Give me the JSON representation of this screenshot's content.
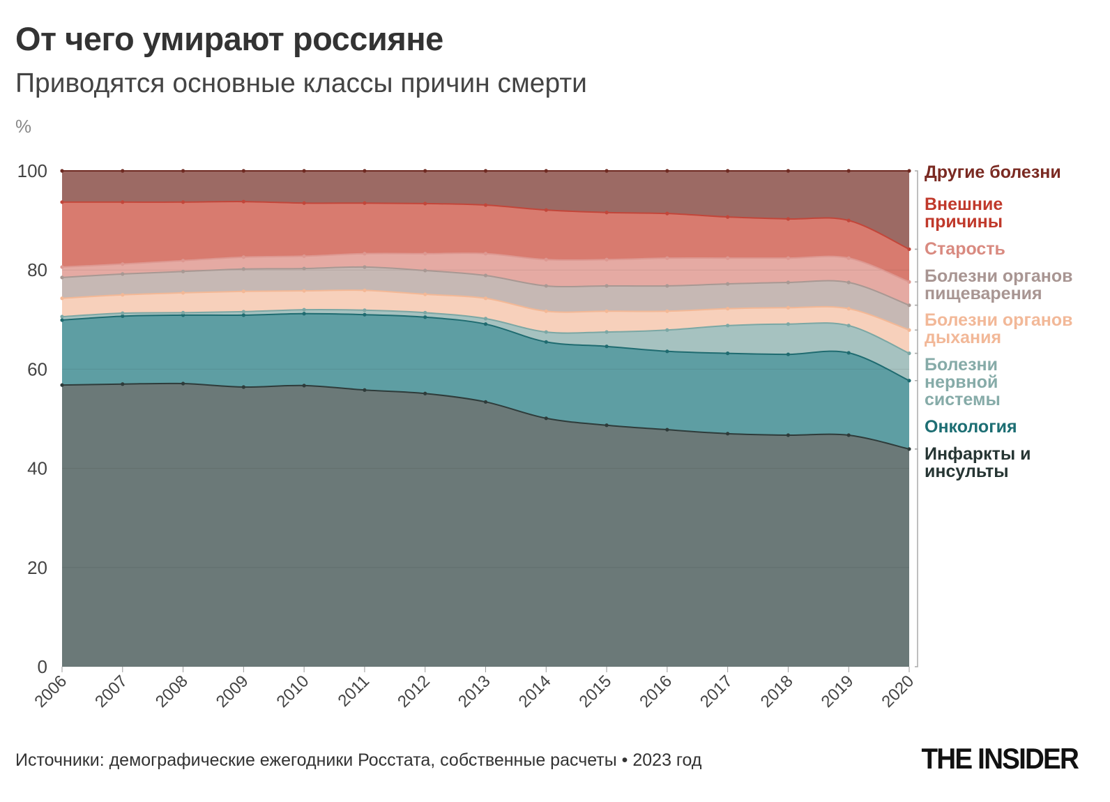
{
  "header": {
    "title": "От чего умирают россияне",
    "subtitle": "Приводятся основные классы причин смерти",
    "unit": "%"
  },
  "footer": {
    "source": "Источники: демографические ежегодники Росстата, собственные расчеты • 2023 год",
    "logo": "THE INSIDER"
  },
  "chart_data": {
    "type": "area",
    "stacked": true,
    "title": "От чего умирают россияне",
    "subtitle": "Приводятся основные классы причин смерти",
    "ylabel": "%",
    "ylim": [
      0,
      100
    ],
    "yticks": [
      0,
      20,
      40,
      60,
      80,
      100
    ],
    "grid": true,
    "legend": "right, inline labels",
    "x": [
      2006,
      2007,
      2008,
      2009,
      2010,
      2011,
      2012,
      2013,
      2014,
      2015,
      2016,
      2017,
      2018,
      2019,
      2020
    ],
    "series": [
      {
        "name": "Инфаркты и инсульты",
        "label_lines": [
          "Инфаркты и",
          "инсульты"
        ],
        "fill": "#6b7978",
        "line": "#2e3b3a",
        "label_color": "#263533",
        "values": [
          56.8,
          57.0,
          57.1,
          56.4,
          56.7,
          55.8,
          55.1,
          53.4,
          50.1,
          48.7,
          47.8,
          47.0,
          46.7,
          46.7,
          43.9
        ]
      },
      {
        "name": "Онкология",
        "label_lines": [
          "Онкология"
        ],
        "fill": "#5e9ea3",
        "line": "#1f6b70",
        "label_color": "#1d6e73",
        "values": [
          13.1,
          13.7,
          13.8,
          14.5,
          14.5,
          15.2,
          15.4,
          15.7,
          15.4,
          15.9,
          15.8,
          16.2,
          16.3,
          16.6,
          13.8
        ]
      },
      {
        "name": "Болезни нервной системы",
        "label_lines": [
          "Болезни",
          "нервной",
          "системы"
        ],
        "fill": "#a6c2c0",
        "line": "#7ba7a4",
        "label_color": "#86aba8",
        "values": [
          0.7,
          0.6,
          0.5,
          0.7,
          0.8,
          0.9,
          0.9,
          1.1,
          2.0,
          2.9,
          4.3,
          5.6,
          6.1,
          5.5,
          5.5
        ]
      },
      {
        "name": "Болезни органов дыхания",
        "label_lines": [
          "Болезни органов",
          "дыхания"
        ],
        "fill": "#f7d0bb",
        "line": "#f3b896",
        "label_color": "#f2b898",
        "values": [
          3.7,
          3.7,
          4.0,
          4.1,
          3.8,
          4.0,
          3.7,
          4.1,
          4.2,
          4.2,
          3.8,
          3.4,
          3.3,
          3.4,
          4.7
        ]
      },
      {
        "name": "Болезни органов пищеварения",
        "label_lines": [
          "Болезни органов",
          "пищеварения"
        ],
        "fill": "#c6b8b4",
        "line": "#a89893",
        "label_color": "#a89592",
        "values": [
          4.2,
          4.2,
          4.3,
          4.5,
          4.5,
          4.7,
          4.8,
          4.6,
          5.1,
          5.1,
          5.1,
          5.0,
          5.1,
          5.3,
          5.0
        ]
      },
      {
        "name": "Старость",
        "label_lines": [
          "Старость"
        ],
        "fill": "#e5aaa3",
        "line": "#dd9891",
        "label_color": "#d98a80",
        "values": [
          2.1,
          2.0,
          2.2,
          2.4,
          2.5,
          2.7,
          3.4,
          4.4,
          5.3,
          5.3,
          5.6,
          5.2,
          4.9,
          4.9,
          4.7
        ]
      },
      {
        "name": "Внешние причины",
        "label_lines": [
          "Внешние",
          "причины"
        ],
        "fill": "#d87b6f",
        "line": "#c2463a",
        "label_color": "#c0392b",
        "values": [
          13.1,
          12.5,
          11.8,
          11.2,
          10.7,
          10.2,
          10.1,
          9.8,
          10.0,
          9.5,
          9.0,
          8.3,
          7.9,
          7.6,
          6.6
        ]
      },
      {
        "name": "Другие болезни",
        "label_lines": [
          "Другие болезни"
        ],
        "fill": "#9c6a64",
        "line": "#6f2a22",
        "label_color": "#7a2a22",
        "values": [
          6.3,
          6.3,
          6.3,
          6.2,
          6.5,
          6.5,
          6.6,
          6.9,
          7.9,
          8.4,
          8.6,
          9.3,
          9.7,
          10.0,
          15.8
        ]
      }
    ]
  }
}
